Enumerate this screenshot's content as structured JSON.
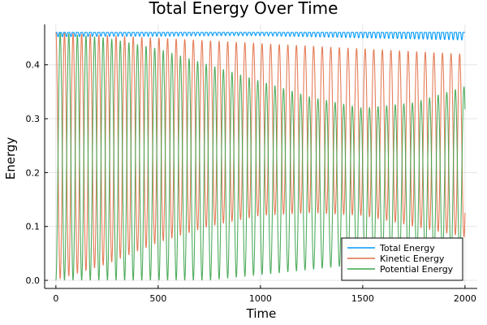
{
  "chart_data": {
    "type": "line",
    "title": "Total Energy Over Time",
    "xlabel": "Time",
    "ylabel": "Energy",
    "xlim": [
      -55,
      2060
    ],
    "ylim": [
      -0.015,
      0.475
    ],
    "xticks": [
      0,
      500,
      1000,
      1500,
      2000
    ],
    "xtick_labels": [
      "0",
      "500",
      "1000",
      "1500",
      "2000"
    ],
    "yticks": [
      0.0,
      0.1,
      0.2,
      0.3,
      0.4
    ],
    "ytick_labels": [
      "0.0",
      "0.1",
      "0.2",
      "0.3",
      "0.4"
    ],
    "grid": true,
    "legend_position": "bottom-right",
    "oscillation_period": 42,
    "envelope_times": [
      0,
      250,
      500,
      750,
      1000,
      1250,
      1500,
      1750,
      2000
    ],
    "series": [
      {
        "name": "Total Energy",
        "color": "#009af9",
        "max": [
          0.46,
          0.46,
          0.46,
          0.46,
          0.46,
          0.46,
          0.46,
          0.46,
          0.46
        ],
        "min": [
          0.452,
          0.453,
          0.453,
          0.454,
          0.454,
          0.452,
          0.45,
          0.448,
          0.446
        ]
      },
      {
        "name": "Kinetic Energy",
        "color": "#e26f46",
        "max": [
          0.46,
          0.455,
          0.45,
          0.445,
          0.44,
          0.435,
          0.43,
          0.425,
          0.42
        ],
        "min": [
          0.0,
          0.03,
          0.07,
          0.1,
          0.12,
          0.125,
          0.12,
          0.1,
          0.08
        ]
      },
      {
        "name": "Potential Energy",
        "color": "#3da44d",
        "max": [
          0.46,
          0.45,
          0.43,
          0.4,
          0.37,
          0.34,
          0.32,
          0.33,
          0.36
        ],
        "min": [
          0.0,
          0.0,
          0.0,
          0.0,
          0.01,
          0.02,
          0.03,
          0.04,
          0.04
        ]
      }
    ]
  }
}
